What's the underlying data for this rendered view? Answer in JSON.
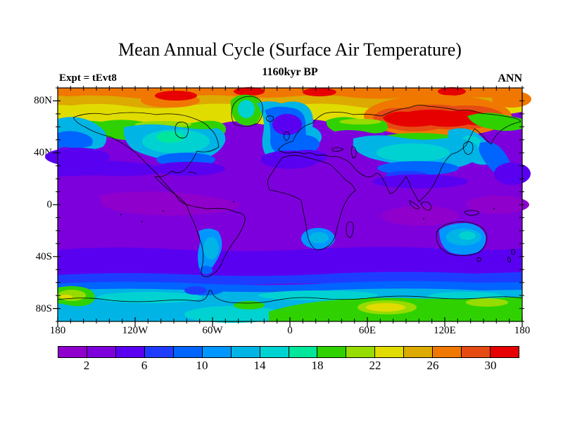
{
  "figure": {
    "title": "Mean Annual Cycle (Surface Air Temperature)",
    "subtitle": "1160kyr BP",
    "experiment_label": "Expt = tEvt8",
    "season_label": "ANN"
  },
  "axes": {
    "lat_tick_labels": [
      "80N",
      "40N",
      "0",
      "40S",
      "80S"
    ],
    "lon_tick_labels": [
      "180",
      "120W",
      "60W",
      "0",
      "60E",
      "120E",
      "180"
    ]
  },
  "colorbar": {
    "tick_labels": [
      "2",
      "6",
      "10",
      "14",
      "18",
      "22",
      "26",
      "30"
    ]
  },
  "chart_data": {
    "type": "heatmap",
    "subtype": "filled-contour world map, equirectangular lat-lon",
    "title": "Mean Annual Cycle (Surface Air Temperature)",
    "subtitle": "1160kyr BP",
    "experiment": "Expt = tEvt8",
    "season": "ANN",
    "x_axis": {
      "ticks": [
        "180",
        "120W",
        "60W",
        "0",
        "60E",
        "120E",
        "180"
      ],
      "range_deg": [
        -180,
        180
      ],
      "minor_tick_deg": 10
    },
    "y_axis": {
      "ticks": [
        "80N",
        "40N",
        "0",
        "40S",
        "80S"
      ],
      "range_deg": [
        -90,
        90
      ],
      "minor_tick_deg": 10
    },
    "contour_interval": 2,
    "labeled_levels": [
      2,
      6,
      10,
      14,
      18,
      22,
      26,
      30
    ],
    "palette": [
      "#8f00cc",
      "#7d00dc",
      "#5a00f0",
      "#1e3cff",
      "#0064ff",
      "#0096ff",
      "#00b4e6",
      "#00d2d2",
      "#00e69b",
      "#2fd200",
      "#96dc00",
      "#e1dc00",
      "#dcaa00",
      "#f07800",
      "#e64b14",
      "#e60000"
    ],
    "regional_values_estimated": [
      {
        "region": "tropical and subtropical oceans 30N-30S",
        "value": "2-4"
      },
      {
        "region": "equatorial Pacific / Indian Ocean patches",
        "value": "0-2"
      },
      {
        "region": "Siberian interior",
        "value": ">30"
      },
      {
        "region": "Arctic Canada and central Arctic",
        "value": "26-30"
      },
      {
        "region": "Arctic band 70-90N",
        "value": "22-28"
      },
      {
        "region": "Greenland interior",
        "value": "14-18"
      },
      {
        "region": "North American interior 40-60N",
        "value": "12-18"
      },
      {
        "region": "central Asia interior 35-50N",
        "value": "12-16"
      },
      {
        "region": "Europe / NE Atlantic coast",
        "value": "6-12"
      },
      {
        "region": "North Atlantic south of Iceland",
        "value": "4-6"
      },
      {
        "region": "North Pacific 40-55N margins",
        "value": "8-14"
      },
      {
        "region": "Argentina, South Africa, Australia interiors",
        "value": "10-16"
      },
      {
        "region": "Southern Ocean 35-60S",
        "value": "2-6"
      },
      {
        "region": "Antarctic coastal band 60-70S",
        "value": "12-16"
      },
      {
        "region": "Antarctic interior 70-90S",
        "value": "16-24",
        "note": "with patches 22-26"
      }
    ]
  }
}
